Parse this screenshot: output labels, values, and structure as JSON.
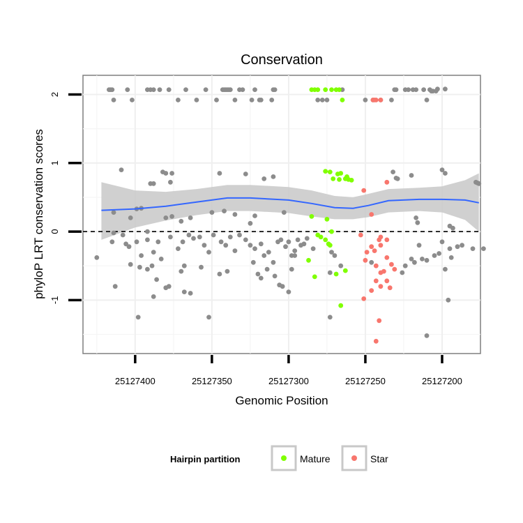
{
  "chart_data": {
    "type": "scatter",
    "title": "Conservation",
    "xlabel": "Genomic Position",
    "ylabel": "phyloP LRT conservation scores",
    "x_reversed": true,
    "xlim": [
      25127434,
      25127175
    ],
    "ylim": [
      -1.78,
      2.28
    ],
    "x_ticks": [
      25127400,
      25127350,
      25127300,
      25127250,
      25127200
    ],
    "y_ticks": [
      -1,
      0,
      1,
      2
    ],
    "y_tick_labels": [
      "-1",
      "0",
      "1",
      "2"
    ],
    "reference_line": {
      "y": 0,
      "style": "dashed"
    },
    "grid": true,
    "legend": {
      "title": "Hairpin partition",
      "position": "bottom",
      "entries": [
        {
          "name": "Mature",
          "color": "#80ff00"
        },
        {
          "name": "Star",
          "color": "#f8766d"
        }
      ]
    },
    "colors": {
      "other": "#8c8c8c",
      "smooth": "#3366ff",
      "ribbon": "#c8c8c8"
    },
    "series": [
      {
        "name": "",
        "color": "#8c8c8c",
        "points": [
          [
            25127417,
            2.07
          ],
          [
            25127416,
            2.07
          ],
          [
            25127415,
            2.07
          ],
          [
            25127414,
            1.92
          ],
          [
            25127405,
            2.07
          ],
          [
            25127402,
            1.92
          ],
          [
            25127392,
            2.07
          ],
          [
            25127390,
            2.07
          ],
          [
            25127388,
            2.07
          ],
          [
            25127384,
            2.07
          ],
          [
            25127378,
            2.07
          ],
          [
            25127372,
            1.92
          ],
          [
            25127367,
            2.07
          ],
          [
            25127360,
            1.92
          ],
          [
            25127354,
            2.07
          ],
          [
            25127347,
            1.92
          ],
          [
            25127343,
            2.07
          ],
          [
            25127342,
            2.07
          ],
          [
            25127341,
            2.07
          ],
          [
            25127340,
            2.07
          ],
          [
            25127339,
            2.07
          ],
          [
            25127338,
            2.07
          ],
          [
            25127335,
            1.92
          ],
          [
            25127332,
            2.07
          ],
          [
            25127330,
            2.07
          ],
          [
            25127324,
            1.92
          ],
          [
            25127322,
            2.07
          ],
          [
            25127319,
            1.92
          ],
          [
            25127318,
            1.92
          ],
          [
            25127311,
            1.92
          ],
          [
            25127310,
            2.07
          ],
          [
            25127309,
            2.07
          ],
          [
            25127281,
            1.92
          ],
          [
            25127278,
            1.92
          ],
          [
            25127275,
            1.92
          ],
          [
            25127265,
            2.07
          ],
          [
            25127250,
            1.92
          ],
          [
            25127245,
            1.92
          ],
          [
            25127240,
            1.92
          ],
          [
            25127233,
            1.92
          ],
          [
            25127231,
            2.07
          ],
          [
            25127230,
            2.07
          ],
          [
            25127224,
            2.07
          ],
          [
            25127222,
            2.07
          ],
          [
            25127219,
            2.07
          ],
          [
            25127217,
            2.07
          ],
          [
            25127212,
            2.07
          ],
          [
            25127210,
            1.92
          ],
          [
            25127208,
            2.07
          ],
          [
            25127207,
            2.05
          ],
          [
            25127206,
            2.05
          ],
          [
            25127204,
            2.05
          ],
          [
            25127203,
            2.08
          ],
          [
            25127198,
            2.08
          ],
          [
            25127409,
            0.9
          ],
          [
            25127390,
            0.7
          ],
          [
            25127388,
            0.7
          ],
          [
            25127382,
            0.87
          ],
          [
            25127380,
            0.85
          ],
          [
            25127377,
            0.72
          ],
          [
            25127376,
            0.85
          ],
          [
            25127345,
            0.85
          ],
          [
            25127328,
            0.84
          ],
          [
            25127310,
            0.8
          ],
          [
            25127316,
            0.77
          ],
          [
            25127232,
            0.87
          ],
          [
            25127230,
            0.78
          ],
          [
            25127229,
            0.77
          ],
          [
            25127220,
            0.82
          ],
          [
            25127200,
            0.9
          ],
          [
            25127198,
            0.85
          ],
          [
            25127178,
            0.72
          ],
          [
            25127177,
            0.71
          ],
          [
            25127176,
            0.7
          ],
          [
            25127399,
            0.33
          ],
          [
            25127396,
            0.34
          ],
          [
            25127414,
            0.28
          ],
          [
            25127403,
            0.2
          ],
          [
            25127392,
            0.0
          ],
          [
            25127380,
            0.2
          ],
          [
            25127376,
            0.22
          ],
          [
            25127370,
            0.15
          ],
          [
            25127364,
            0.2
          ],
          [
            25127350,
            0.28
          ],
          [
            25127342,
            0.3
          ],
          [
            25127335,
            0.25
          ],
          [
            25127325,
            0.12
          ],
          [
            25127322,
            0.23
          ],
          [
            25127303,
            0.28
          ],
          [
            25127217,
            0.2
          ],
          [
            25127216,
            0.13
          ],
          [
            25127195,
            0.08
          ],
          [
            25127193,
            0.05
          ],
          [
            25127414,
            -0.02
          ],
          [
            25127408,
            -0.05
          ],
          [
            25127406,
            -0.18
          ],
          [
            25127404,
            -0.22
          ],
          [
            25127399,
            -0.15
          ],
          [
            25127396,
            -0.35
          ],
          [
            25127392,
            -0.12
          ],
          [
            25127388,
            -0.3
          ],
          [
            25127385,
            -0.15
          ],
          [
            25127383,
            -0.4
          ],
          [
            25127377,
            -0.08
          ],
          [
            25127372,
            -0.25
          ],
          [
            25127369,
            -0.15
          ],
          [
            25127365,
            -0.05
          ],
          [
            25127362,
            -0.1
          ],
          [
            25127358,
            -0.08
          ],
          [
            25127355,
            -0.2
          ],
          [
            25127352,
            -0.3
          ],
          [
            25127349,
            -0.05
          ],
          [
            25127344,
            -0.15
          ],
          [
            25127341,
            -0.2
          ],
          [
            25127338,
            -0.08
          ],
          [
            25127335,
            -0.28
          ],
          [
            25127332,
            -0.05
          ],
          [
            25127328,
            -0.12
          ],
          [
            25127325,
            -0.2
          ],
          [
            25127322,
            -0.25
          ],
          [
            25127318,
            -0.18
          ],
          [
            25127316,
            -0.35
          ],
          [
            25127313,
            -0.3
          ],
          [
            25127310,
            -0.45
          ],
          [
            25127307,
            -0.15
          ],
          [
            25127305,
            -0.12
          ],
          [
            25127302,
            -0.22
          ],
          [
            25127300,
            -0.15
          ],
          [
            25127298,
            -0.35
          ],
          [
            25127296,
            -0.28
          ],
          [
            25127294,
            -0.12
          ],
          [
            25127292,
            -0.2
          ],
          [
            25127290,
            -0.18
          ],
          [
            25127288,
            -0.1
          ],
          [
            25127284,
            -0.25
          ],
          [
            25127272,
            -0.3
          ],
          [
            25127270,
            -0.35
          ],
          [
            25127266,
            -0.5
          ],
          [
            25127215,
            -0.2
          ],
          [
            25127213,
            -0.4
          ],
          [
            25127210,
            -0.42
          ],
          [
            25127205,
            -0.35
          ],
          [
            25127202,
            -0.32
          ],
          [
            25127200,
            -0.15
          ],
          [
            25127198,
            -0.55
          ],
          [
            25127195,
            -0.25
          ],
          [
            25127190,
            -0.22
          ],
          [
            25127187,
            -0.2
          ],
          [
            25127180,
            -0.25
          ],
          [
            25127173,
            -0.25
          ],
          [
            25127425,
            -0.38
          ],
          [
            25127415,
            -0.15
          ],
          [
            25127403,
            -0.48
          ],
          [
            25127397,
            -0.52
          ],
          [
            25127392,
            -0.55
          ],
          [
            25127389,
            -0.5
          ],
          [
            25127386,
            -0.7
          ],
          [
            25127380,
            -0.82
          ],
          [
            25127378,
            -0.8
          ],
          [
            25127370,
            -0.58
          ],
          [
            25127368,
            -0.5
          ],
          [
            25127357,
            -0.52
          ],
          [
            25127345,
            -0.62
          ],
          [
            25127340,
            -0.58
          ],
          [
            25127323,
            -0.45
          ],
          [
            25127320,
            -0.62
          ],
          [
            25127318,
            -0.68
          ],
          [
            25127314,
            -0.55
          ],
          [
            25127309,
            -0.65
          ],
          [
            25127306,
            -0.78
          ],
          [
            25127304,
            -0.8
          ],
          [
            25127300,
            -0.88
          ],
          [
            25127298,
            -0.55
          ],
          [
            25127296,
            -0.35
          ],
          [
            25127273,
            -0.6
          ],
          [
            25127246,
            -0.45
          ],
          [
            25127226,
            -0.6
          ],
          [
            25127224,
            -0.5
          ],
          [
            25127220,
            -0.4
          ],
          [
            25127218,
            -0.45
          ],
          [
            25127196,
            -1.0
          ],
          [
            25127194,
            -0.38
          ],
          [
            25127413,
            -0.8
          ],
          [
            25127398,
            -1.25
          ],
          [
            25127388,
            -0.95
          ],
          [
            25127368,
            -0.88
          ],
          [
            25127364,
            -0.9
          ],
          [
            25127352,
            -1.25
          ],
          [
            25127273,
            -1.25
          ],
          [
            25127210,
            -1.52
          ]
        ]
      },
      {
        "name": "Mature",
        "color": "#80ff00",
        "points": [
          [
            25127285,
            2.07
          ],
          [
            25127283,
            2.07
          ],
          [
            25127281,
            2.07
          ],
          [
            25127276,
            2.07
          ],
          [
            25127272,
            2.07
          ],
          [
            25127269,
            2.07
          ],
          [
            25127267,
            2.07
          ],
          [
            25127265,
            1.92
          ],
          [
            25127276,
            0.88
          ],
          [
            25127273,
            0.87
          ],
          [
            25127268,
            0.84
          ],
          [
            25127271,
            0.77
          ],
          [
            25127267,
            0.76
          ],
          [
            25127263,
            0.77
          ],
          [
            25127266,
            0.85
          ],
          [
            25127262,
            0.8
          ],
          [
            25127261,
            0.76
          ],
          [
            25127259,
            0.75
          ],
          [
            25127285,
            0.22
          ],
          [
            25127275,
            0.18
          ],
          [
            25127281,
            -0.05
          ],
          [
            25127279,
            -0.08
          ],
          [
            25127276,
            -0.12
          ],
          [
            25127274,
            -0.18
          ],
          [
            25127272,
            0.0
          ],
          [
            25127273,
            -0.2
          ],
          [
            25127287,
            -0.42
          ],
          [
            25127283,
            -0.66
          ],
          [
            25127269,
            -0.62
          ],
          [
            25127263,
            -0.57
          ],
          [
            25127266,
            -1.08
          ]
        ]
      },
      {
        "name": "Star",
        "color": "#f8766d",
        "points": [
          [
            25127244,
            1.92
          ],
          [
            25127245,
            1.92
          ],
          [
            25127243,
            1.92
          ],
          [
            25127240,
            1.92
          ],
          [
            25127251,
            0.6
          ],
          [
            25127236,
            0.72
          ],
          [
            25127246,
            0.25
          ],
          [
            25127253,
            -0.05
          ],
          [
            25127241,
            -0.12
          ],
          [
            25127240,
            -0.08
          ],
          [
            25127236,
            -0.12
          ],
          [
            25127249,
            -0.3
          ],
          [
            25127246,
            -0.22
          ],
          [
            25127244,
            -0.28
          ],
          [
            25127240,
            -0.2
          ],
          [
            25127250,
            -0.42
          ],
          [
            25127243,
            -0.5
          ],
          [
            25127236,
            -0.38
          ],
          [
            25127233,
            -0.48
          ],
          [
            25127231,
            -0.55
          ],
          [
            25127238,
            -0.58
          ],
          [
            25127240,
            -0.6
          ],
          [
            25127243,
            -0.72
          ],
          [
            25127246,
            -0.86
          ],
          [
            25127240,
            -0.8
          ],
          [
            25127236,
            -0.72
          ],
          [
            25127234,
            -0.82
          ],
          [
            25127251,
            -0.98
          ],
          [
            25127241,
            -1.3
          ],
          [
            25127243,
            -1.6
          ]
        ]
      }
    ],
    "smooth_line": [
      [
        25127422,
        0.31
      ],
      [
        25127400,
        0.33
      ],
      [
        25127380,
        0.37
      ],
      [
        25127360,
        0.43
      ],
      [
        25127340,
        0.49
      ],
      [
        25127325,
        0.49
      ],
      [
        25127300,
        0.46
      ],
      [
        25127285,
        0.41
      ],
      [
        25127270,
        0.35
      ],
      [
        25127258,
        0.34
      ],
      [
        25127248,
        0.38
      ],
      [
        25127235,
        0.45
      ],
      [
        25127215,
        0.47
      ],
      [
        25127200,
        0.47
      ],
      [
        25127185,
        0.46
      ],
      [
        25127176,
        0.42
      ]
    ],
    "ribbon_upper": [
      [
        25127422,
        0.72
      ],
      [
        25127400,
        0.6
      ],
      [
        25127380,
        0.58
      ],
      [
        25127360,
        0.62
      ],
      [
        25127340,
        0.68
      ],
      [
        25127325,
        0.68
      ],
      [
        25127300,
        0.65
      ],
      [
        25127285,
        0.6
      ],
      [
        25127270,
        0.52
      ],
      [
        25127258,
        0.5
      ],
      [
        25127248,
        0.55
      ],
      [
        25127235,
        0.62
      ],
      [
        25127215,
        0.64
      ],
      [
        25127200,
        0.66
      ],
      [
        25127185,
        0.75
      ],
      [
        25127176,
        0.85
      ]
    ],
    "ribbon_lower": [
      [
        25127422,
        -0.12
      ],
      [
        25127400,
        0.06
      ],
      [
        25127380,
        0.16
      ],
      [
        25127360,
        0.24
      ],
      [
        25127340,
        0.3
      ],
      [
        25127325,
        0.3
      ],
      [
        25127300,
        0.27
      ],
      [
        25127285,
        0.22
      ],
      [
        25127270,
        0.18
      ],
      [
        25127258,
        0.18
      ],
      [
        25127248,
        0.21
      ],
      [
        25127235,
        0.28
      ],
      [
        25127215,
        0.3
      ],
      [
        25127200,
        0.28
      ],
      [
        25127185,
        0.17
      ],
      [
        25127176,
        0.0
      ]
    ]
  }
}
